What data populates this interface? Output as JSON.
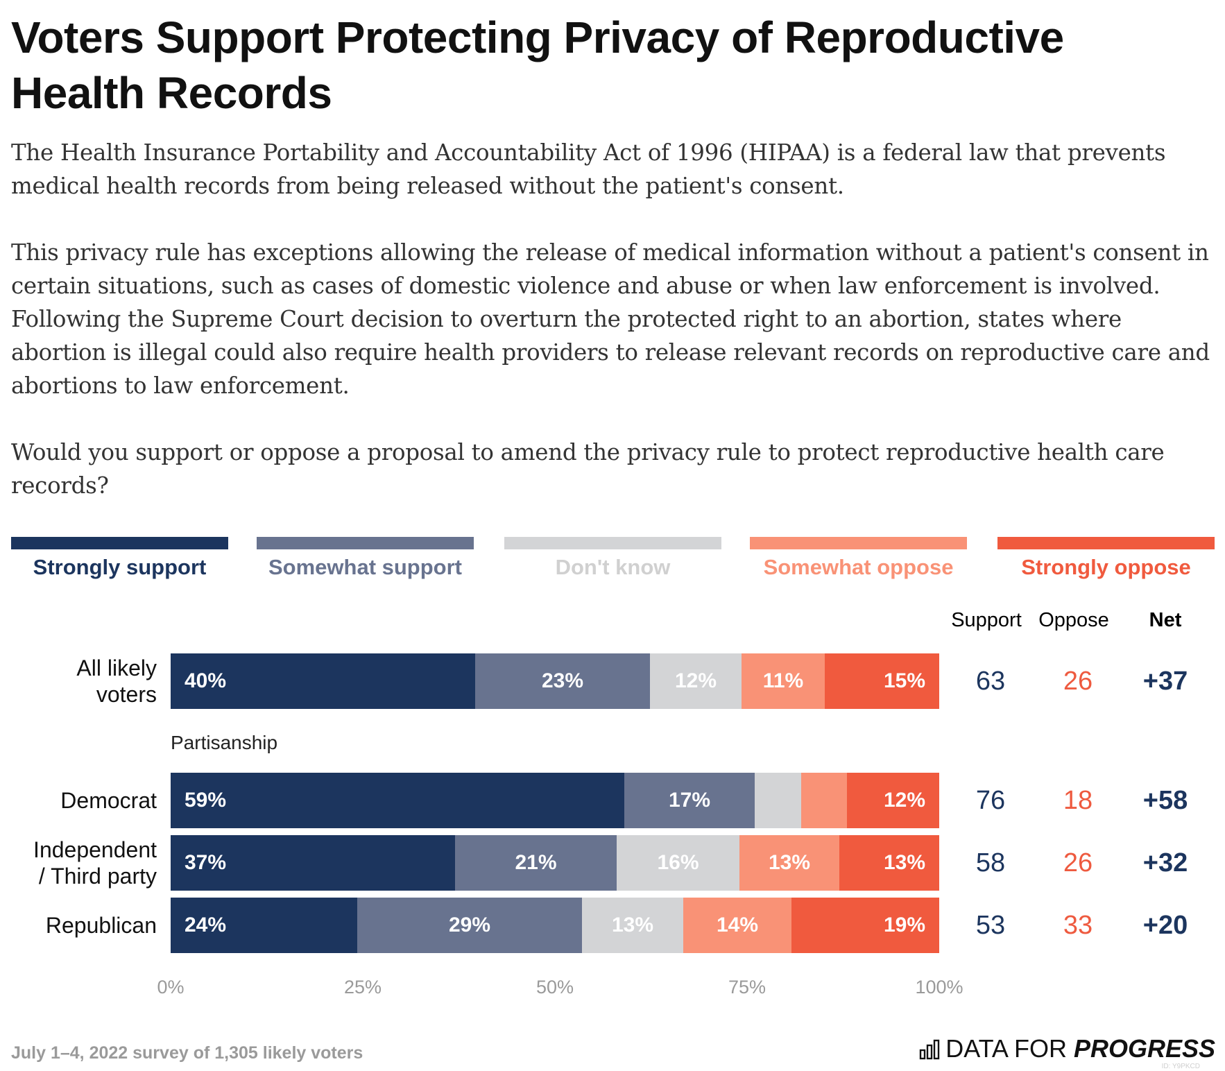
{
  "title": "Voters Support Protecting Privacy of Reproductive Health Records",
  "description": [
    "The Health Insurance Portability and Accountability Act of 1996 (HIPAA) is a federal law that prevents medical health records from being released without the patient's consent.",
    "This privacy rule has exceptions allowing the release of medical information without a patient's consent in certain situations, such as cases of domestic violence and abuse or when law enforcement is involved. Following the Supreme Court decision to overturn the protected right to an abortion, states where abortion is illegal could also require health providers to release relevant records on reproductive care and abortions to law enforcement.",
    "Would you support or oppose a proposal to amend the privacy rule to protect reproductive health care records?"
  ],
  "colors": {
    "strongly_support": "#1c355e",
    "somewhat_support": "#68738f",
    "dont_know": "#d3d4d6",
    "somewhat_oppose": "#f99276",
    "strongly_oppose": "#f05a3e",
    "support_text": "#1c355e",
    "oppose_text": "#ee5a3f",
    "dont_know_label": "#d0d0d0"
  },
  "chart_data": {
    "type": "bar",
    "orientation": "horizontal",
    "stacked": true,
    "xlim": [
      0,
      100
    ],
    "ticks": [
      "0%",
      "25%",
      "50%",
      "75%",
      "100%"
    ],
    "legend_placement": "top",
    "legend": [
      "Strongly support",
      "Somewhat support",
      "Don't know",
      "Somewhat oppose",
      "Strongly oppose"
    ],
    "summary_headers": {
      "support": "Support",
      "oppose": "Oppose",
      "net": "Net"
    },
    "group_label": "Partisanship",
    "rows": [
      {
        "label_lines": [
          "All likely",
          "voters"
        ],
        "values": [
          40,
          23,
          12,
          11,
          15
        ],
        "labels": [
          "40%",
          "23%",
          "12%",
          "11%",
          "15%"
        ],
        "support": "63",
        "oppose": "26",
        "net": "+37"
      },
      {
        "label_lines": [
          "Democrat"
        ],
        "values": [
          59,
          17,
          6,
          6,
          12
        ],
        "labels": [
          "59%",
          "17%",
          "",
          "",
          "12%"
        ],
        "support": "76",
        "oppose": "18",
        "net": "+58"
      },
      {
        "label_lines": [
          "Independent",
          "/ Third party"
        ],
        "values": [
          37,
          21,
          16,
          13,
          13
        ],
        "labels": [
          "37%",
          "21%",
          "16%",
          "13%",
          "13%"
        ],
        "support": "58",
        "oppose": "26",
        "net": "+32"
      },
      {
        "label_lines": [
          "Republican"
        ],
        "values": [
          24,
          29,
          13,
          14,
          19
        ],
        "labels": [
          "24%",
          "29%",
          "13%",
          "14%",
          "19%"
        ],
        "support": "53",
        "oppose": "33",
        "net": "+20"
      }
    ]
  },
  "footer": {
    "source": "July 1–4, 2022 survey of 1,305 likely voters",
    "brand_regular": "DATA FOR ",
    "brand_bold": "PROGRESS",
    "chart_id": "ID: Y9PKCD"
  }
}
